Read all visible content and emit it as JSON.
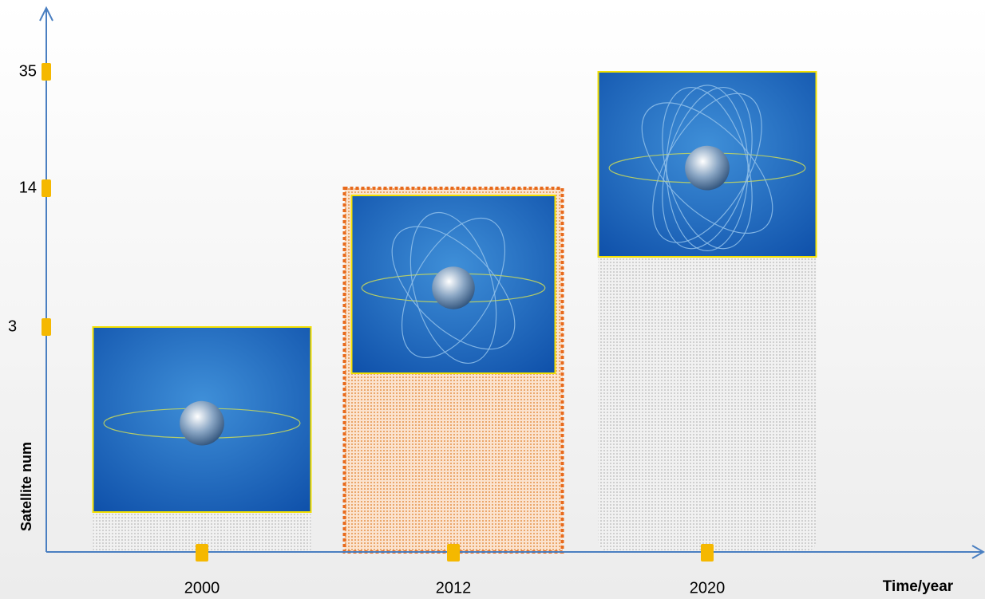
{
  "chart_data": {
    "type": "bar",
    "y_label": "Satellite num",
    "x_label": "Time/year",
    "categories": [
      "2000",
      "2012",
      "2020"
    ],
    "values": [
      3,
      14,
      35
    ],
    "yticks": [
      3,
      14,
      35
    ],
    "color": "#f5b800"
  }
}
